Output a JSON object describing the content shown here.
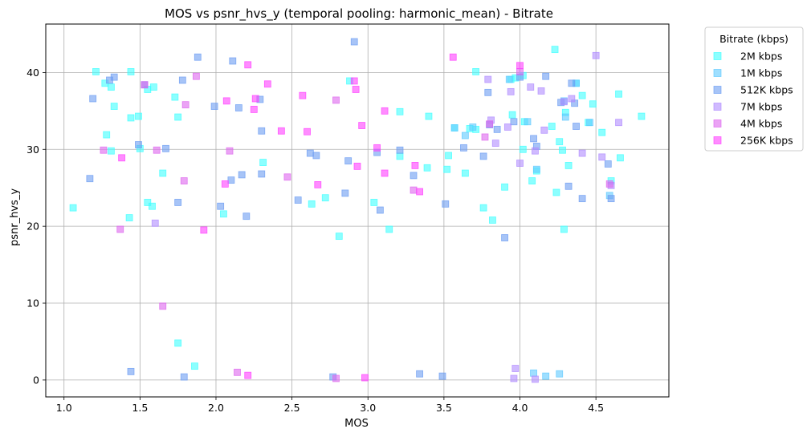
{
  "chart_data": {
    "type": "scatter",
    "title": "MOS vs psnr_hvs_y (temporal pooling: harmonic_mean) - Bitrate",
    "xlabel": "MOS",
    "ylabel": "psnr_hvs_y",
    "xlim": [
      0.88,
      4.98
    ],
    "ylim": [
      -2.2,
      46.3
    ],
    "xticks": [
      1.0,
      1.5,
      2.0,
      2.5,
      3.0,
      3.5,
      4.0,
      4.5
    ],
    "xtick_labels": [
      "1.0",
      "1.5",
      "2.0",
      "2.5",
      "3.0",
      "3.5",
      "4.0",
      "4.5"
    ],
    "yticks": [
      0,
      10,
      20,
      30,
      40
    ],
    "ytick_labels": [
      "0",
      "10",
      "20",
      "30",
      "40"
    ],
    "grid": true,
    "marker": "square",
    "legend": {
      "title": "Bitrate (kbps)",
      "position": "outside-top-right"
    },
    "series": [
      {
        "name": "2M kbps",
        "color": "#40ffff",
        "points": [
          [
            1.06,
            22.4
          ],
          [
            1.21,
            40.1
          ],
          [
            1.27,
            38.6
          ],
          [
            1.28,
            31.9
          ],
          [
            1.31,
            29.8
          ],
          [
            1.31,
            38.1
          ],
          [
            1.33,
            35.6
          ],
          [
            1.43,
            21.1
          ],
          [
            1.44,
            34.1
          ],
          [
            1.44,
            40.1
          ],
          [
            1.49,
            34.3
          ],
          [
            1.5,
            30.1
          ],
          [
            1.55,
            23.1
          ],
          [
            1.55,
            37.8
          ],
          [
            1.58,
            22.6
          ],
          [
            1.59,
            38.1
          ],
          [
            1.65,
            26.9
          ],
          [
            1.73,
            36.8
          ],
          [
            1.75,
            34.2
          ],
          [
            1.75,
            4.8
          ],
          [
            1.86,
            1.8
          ],
          [
            2.05,
            21.6
          ],
          [
            2.31,
            28.3
          ],
          [
            2.63,
            22.9
          ],
          [
            2.72,
            23.7
          ],
          [
            2.81,
            18.7
          ],
          [
            2.88,
            38.9
          ],
          [
            3.04,
            23.1
          ],
          [
            3.14,
            19.6
          ],
          [
            3.21,
            29.1
          ],
          [
            3.21,
            34.9
          ],
          [
            3.39,
            27.6
          ],
          [
            3.4,
            34.3
          ],
          [
            3.52,
            27.4
          ],
          [
            3.53,
            29.2
          ],
          [
            3.57,
            32.8
          ],
          [
            3.64,
            26.9
          ],
          [
            3.67,
            32.7
          ],
          [
            3.71,
            32.6
          ],
          [
            3.71,
            40.1
          ],
          [
            3.76,
            22.4
          ],
          [
            3.82,
            20.8
          ],
          [
            3.9,
            25.1
          ],
          [
            3.94,
            39.1
          ],
          [
            3.95,
            34.5
          ],
          [
            3.97,
            39.3
          ],
          [
            4.02,
            39.6
          ],
          [
            4.03,
            33.6
          ],
          [
            4.02,
            30.0
          ],
          [
            4.08,
            25.9
          ],
          [
            4.11,
            27.2
          ],
          [
            4.21,
            33.0
          ],
          [
            4.23,
            43.0
          ],
          [
            4.24,
            24.4
          ],
          [
            4.26,
            31.0
          ],
          [
            4.28,
            29.9
          ],
          [
            4.29,
            19.6
          ],
          [
            4.3,
            34.8
          ],
          [
            4.32,
            27.9
          ],
          [
            4.37,
            38.6
          ],
          [
            4.41,
            37.0
          ],
          [
            4.45,
            33.5
          ],
          [
            4.48,
            35.9
          ],
          [
            4.54,
            32.2
          ],
          [
            4.6,
            25.9
          ],
          [
            4.65,
            37.2
          ],
          [
            4.66,
            28.9
          ],
          [
            4.8,
            34.3
          ]
        ]
      },
      {
        "name": "1M kbps",
        "color": "#5fc9ff",
        "points": [
          [
            4.26,
            0.8
          ],
          [
            4.09,
            0.9
          ],
          [
            4.17,
            0.5
          ],
          [
            3.93,
            39.1
          ],
          [
            4.29,
            36.3
          ],
          [
            3.57,
            32.8
          ],
          [
            4.3,
            34.2
          ],
          [
            3.69,
            32.9
          ],
          [
            3.64,
            31.8
          ],
          [
            4.46,
            33.5
          ],
          [
            4.05,
            33.6
          ],
          [
            4.11,
            27.4
          ],
          [
            4.59,
            24.0
          ],
          [
            4.37,
            38.6
          ]
        ]
      },
      {
        "name": "512K kbps",
        "color": "#6c9cf2",
        "points": [
          [
            1.17,
            26.2
          ],
          [
            1.19,
            36.6
          ],
          [
            1.3,
            39.0
          ],
          [
            1.33,
            39.4
          ],
          [
            1.44,
            1.1
          ],
          [
            1.49,
            30.6
          ],
          [
            1.53,
            38.4
          ],
          [
            1.67,
            30.1
          ],
          [
            1.75,
            23.1
          ],
          [
            1.78,
            39.0
          ],
          [
            1.79,
            0.4
          ],
          [
            1.88,
            42.0
          ],
          [
            1.99,
            35.6
          ],
          [
            2.03,
            22.6
          ],
          [
            2.1,
            26.0
          ],
          [
            2.11,
            41.5
          ],
          [
            2.15,
            35.4
          ],
          [
            2.17,
            26.7
          ],
          [
            2.2,
            21.3
          ],
          [
            2.29,
            36.5
          ],
          [
            2.3,
            26.8
          ],
          [
            2.3,
            32.4
          ],
          [
            2.54,
            23.4
          ],
          [
            2.62,
            29.5
          ],
          [
            2.66,
            29.2
          ],
          [
            2.77,
            0.4
          ],
          [
            2.85,
            24.3
          ],
          [
            2.87,
            28.5
          ],
          [
            2.91,
            44.0
          ],
          [
            3.06,
            29.6
          ],
          [
            3.08,
            22.1
          ],
          [
            3.21,
            29.9
          ],
          [
            3.3,
            26.6
          ],
          [
            3.34,
            0.8
          ],
          [
            3.49,
            0.5
          ],
          [
            3.51,
            22.9
          ],
          [
            3.63,
            30.2
          ],
          [
            3.76,
            29.1
          ],
          [
            3.79,
            37.4
          ],
          [
            3.8,
            33.2
          ],
          [
            3.85,
            32.6
          ],
          [
            3.9,
            18.5
          ],
          [
            3.96,
            33.6
          ],
          [
            4.0,
            39.4
          ],
          [
            4.09,
            31.4
          ],
          [
            4.11,
            30.4
          ],
          [
            4.17,
            39.5
          ],
          [
            4.27,
            36.1
          ],
          [
            4.32,
            25.2
          ],
          [
            4.34,
            38.6
          ],
          [
            4.36,
            36.0
          ],
          [
            4.37,
            33.0
          ],
          [
            4.41,
            23.6
          ],
          [
            4.58,
            28.1
          ],
          [
            4.6,
            23.6
          ]
        ]
      },
      {
        "name": "7M kbps",
        "color": "#b08cff",
        "points": [
          [
            1.6,
            20.4
          ],
          [
            3.79,
            39.1
          ],
          [
            3.81,
            33.8
          ],
          [
            3.84,
            30.8
          ],
          [
            3.92,
            32.9
          ],
          [
            3.94,
            37.5
          ],
          [
            3.96,
            0.2
          ],
          [
            3.97,
            1.5
          ],
          [
            4.0,
            28.2
          ],
          [
            4.07,
            38.1
          ],
          [
            4.1,
            0.1
          ],
          [
            4.1,
            29.8
          ],
          [
            4.14,
            37.6
          ],
          [
            4.16,
            32.5
          ],
          [
            4.29,
            36.2
          ],
          [
            4.34,
            36.6
          ],
          [
            4.41,
            29.5
          ],
          [
            4.5,
            42.2
          ],
          [
            4.54,
            29.0
          ],
          [
            4.6,
            25.3
          ],
          [
            4.65,
            33.5
          ]
        ]
      },
      {
        "name": "4M kbps",
        "color": "#dd66ee",
        "points": [
          [
            1.26,
            29.9
          ],
          [
            1.37,
            19.6
          ],
          [
            1.53,
            38.4
          ],
          [
            1.61,
            29.9
          ],
          [
            1.65,
            9.6
          ],
          [
            1.79,
            25.9
          ],
          [
            1.8,
            35.8
          ],
          [
            1.87,
            39.5
          ],
          [
            2.09,
            29.8
          ],
          [
            2.14,
            1.0
          ],
          [
            2.47,
            26.4
          ],
          [
            2.79,
            36.4
          ],
          [
            2.79,
            0.2
          ],
          [
            3.3,
            24.7
          ],
          [
            3.77,
            31.6
          ],
          [
            3.8,
            33.3
          ],
          [
            4.0,
            40.1
          ],
          [
            4.59,
            25.5
          ]
        ]
      },
      {
        "name": "256K kbps",
        "color": "#ff40ff",
        "points": [
          [
            1.38,
            28.9
          ],
          [
            1.92,
            19.5
          ],
          [
            2.06,
            25.5
          ],
          [
            2.07,
            36.3
          ],
          [
            2.21,
            0.6
          ],
          [
            2.21,
            41.0
          ],
          [
            2.25,
            35.2
          ],
          [
            2.26,
            36.6
          ],
          [
            2.34,
            38.5
          ],
          [
            2.43,
            32.4
          ],
          [
            2.57,
            37.0
          ],
          [
            2.6,
            32.3
          ],
          [
            2.67,
            25.4
          ],
          [
            2.91,
            38.9
          ],
          [
            2.93,
            27.8
          ],
          [
            2.96,
            33.1
          ],
          [
            2.98,
            0.3
          ],
          [
            3.06,
            30.2
          ],
          [
            3.11,
            26.9
          ],
          [
            3.11,
            35.0
          ],
          [
            3.31,
            27.9
          ],
          [
            3.34,
            24.5
          ],
          [
            3.56,
            42.0
          ],
          [
            2.92,
            37.8
          ],
          [
            4.0,
            40.9
          ]
        ]
      }
    ]
  }
}
